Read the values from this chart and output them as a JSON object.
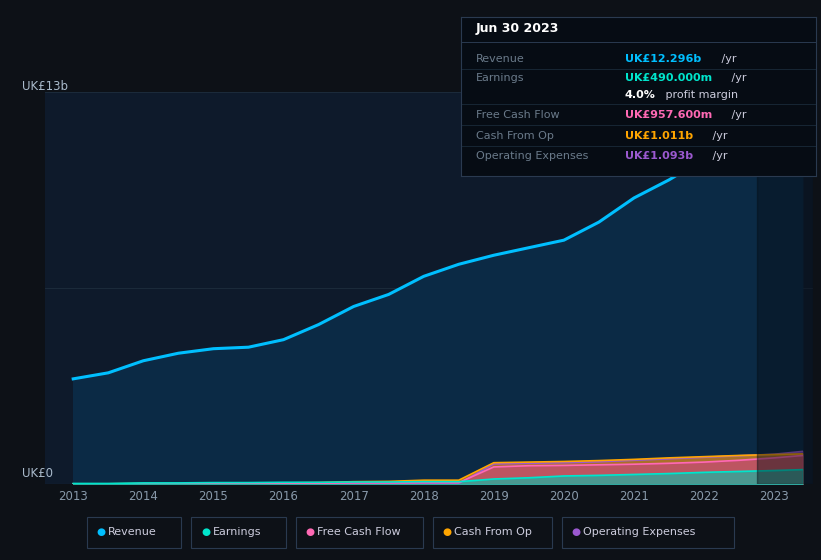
{
  "bg_color": "#0d1117",
  "plot_bg_color": "#0e1a2b",
  "y_label_top": "UK£13b",
  "y_label_zero": "UK£0",
  "years": [
    2013,
    2013.5,
    2014,
    2014.5,
    2015,
    2015.5,
    2016,
    2016.5,
    2017,
    2017.5,
    2018,
    2018.5,
    2019,
    2019.5,
    2020,
    2020.5,
    2021,
    2021.5,
    2022,
    2022.5,
    2023,
    2023.4
  ],
  "revenue": [
    3.5,
    3.7,
    4.1,
    4.35,
    4.5,
    4.55,
    4.8,
    5.3,
    5.9,
    6.3,
    6.9,
    7.3,
    7.6,
    7.85,
    8.1,
    8.7,
    9.5,
    10.1,
    10.8,
    11.4,
    12.0,
    12.296
  ],
  "earnings": [
    0.03,
    0.03,
    0.05,
    0.05,
    0.06,
    0.06,
    0.07,
    0.07,
    0.08,
    0.08,
    0.09,
    0.09,
    0.18,
    0.22,
    0.28,
    0.3,
    0.33,
    0.36,
    0.4,
    0.43,
    0.46,
    0.49
  ],
  "free_cash_flow": [
    0.01,
    0.01,
    0.02,
    0.02,
    0.03,
    0.03,
    0.04,
    0.04,
    0.05,
    0.05,
    0.06,
    0.06,
    0.58,
    0.62,
    0.63,
    0.65,
    0.67,
    0.7,
    0.74,
    0.8,
    0.88,
    0.9576
  ],
  "cash_from_op": [
    0.02,
    0.02,
    0.03,
    0.03,
    0.04,
    0.04,
    0.05,
    0.06,
    0.09,
    0.1,
    0.14,
    0.14,
    0.72,
    0.74,
    0.76,
    0.79,
    0.83,
    0.88,
    0.92,
    0.96,
    0.99,
    1.011
  ],
  "operating_exp": [
    0.01,
    0.01,
    0.01,
    0.01,
    0.02,
    0.02,
    0.02,
    0.02,
    0.02,
    0.02,
    0.03,
    0.03,
    0.68,
    0.7,
    0.72,
    0.75,
    0.8,
    0.85,
    0.9,
    0.95,
    1.0,
    1.093
  ],
  "revenue_color": "#00bfff",
  "earnings_color": "#00e5cc",
  "fcf_color": "#ff69b4",
  "cfo_color": "#ffa500",
  "opex_color": "#9b59d0",
  "ylim": [
    0,
    13
  ],
  "xlim": [
    2012.6,
    2023.55
  ],
  "xticks": [
    2013,
    2014,
    2015,
    2016,
    2017,
    2018,
    2019,
    2020,
    2021,
    2022,
    2023
  ],
  "legend_items": [
    {
      "label": "Revenue",
      "color": "#00bfff"
    },
    {
      "label": "Earnings",
      "color": "#00e5cc"
    },
    {
      "label": "Free Cash Flow",
      "color": "#ff69b4"
    },
    {
      "label": "Cash From Op",
      "color": "#ffa500"
    },
    {
      "label": "Operating Expenses",
      "color": "#9b59d0"
    }
  ],
  "info_box": {
    "title": "Jun 30 2023",
    "rows": [
      {
        "label": "Revenue",
        "value": "UK£12.296b",
        "unit": " /yr",
        "value_color": "#00bfff",
        "is_sub": false
      },
      {
        "label": "Earnings",
        "value": "UK£490.000m",
        "unit": " /yr",
        "value_color": "#00e5cc",
        "is_sub": false
      },
      {
        "label": "",
        "value": "4.0%",
        "unit": " profit margin",
        "value_color": "#ffffff",
        "is_sub": true
      },
      {
        "label": "Free Cash Flow",
        "value": "UK£957.600m",
        "unit": " /yr",
        "value_color": "#ff69b4",
        "is_sub": false
      },
      {
        "label": "Cash From Op",
        "value": "UK£1.011b",
        "unit": " /yr",
        "value_color": "#ffa500",
        "is_sub": false
      },
      {
        "label": "Operating Expenses",
        "value": "UK£1.093b",
        "unit": " /yr",
        "value_color": "#9b59d0",
        "is_sub": false
      }
    ]
  }
}
